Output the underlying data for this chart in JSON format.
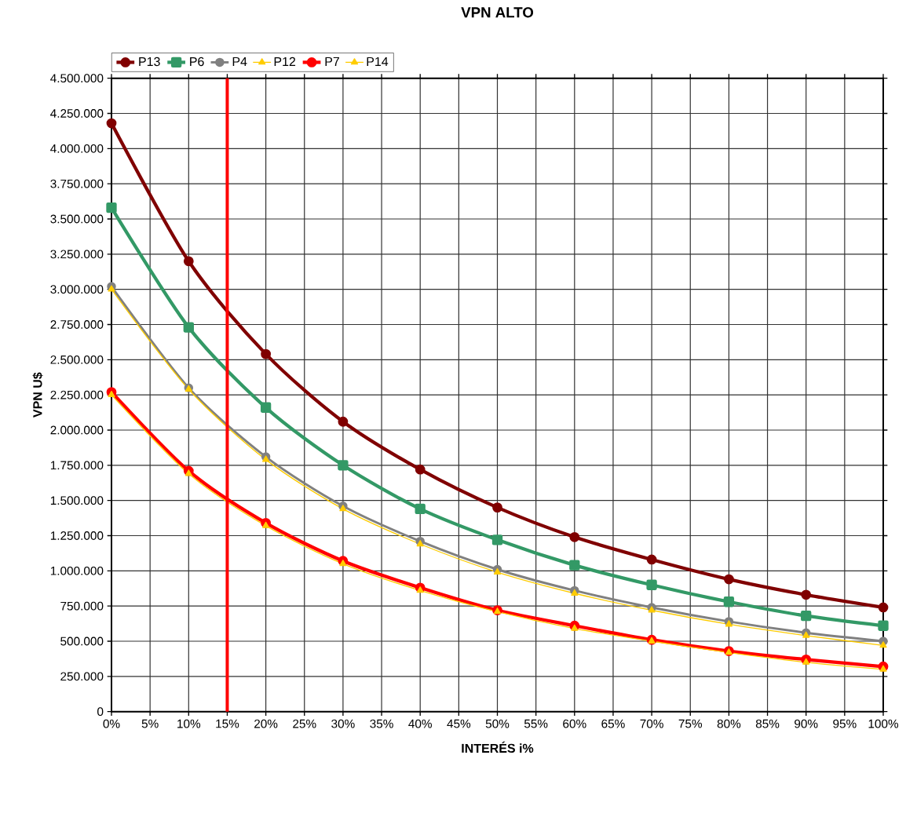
{
  "chart_data": {
    "type": "line",
    "title": "VPN ALTO",
    "xlabel": "INTERÉS i%",
    "ylabel": "VPN U$",
    "x": [
      0,
      10,
      20,
      30,
      40,
      50,
      60,
      70,
      80,
      90,
      100
    ],
    "series": [
      {
        "name": "P13",
        "color": "#800000",
        "marker": "circle",
        "values": [
          4180000,
          3200000,
          2540000,
          2060000,
          1720000,
          1450000,
          1240000,
          1080000,
          940000,
          830000,
          740000
        ]
      },
      {
        "name": "P6",
        "color": "#339966",
        "marker": "square",
        "values": [
          3580000,
          2730000,
          2160000,
          1750000,
          1440000,
          1220000,
          1040000,
          900000,
          780000,
          680000,
          610000
        ]
      },
      {
        "name": "P4",
        "color": "#808080",
        "marker": "circle",
        "values": [
          3020000,
          2300000,
          1810000,
          1460000,
          1210000,
          1010000,
          860000,
          740000,
          640000,
          560000,
          500000
        ]
      },
      {
        "name": "P12",
        "color": "#ffcc00",
        "marker": "triangle",
        "values": [
          3000000,
          2290000,
          1790000,
          1440000,
          1190000,
          990000,
          840000,
          720000,
          620000,
          540000,
          470000
        ]
      },
      {
        "name": "P7",
        "color": "#ff0000",
        "marker": "circle",
        "values": [
          2270000,
          1710000,
          1340000,
          1070000,
          880000,
          720000,
          610000,
          510000,
          430000,
          370000,
          320000
        ]
      },
      {
        "name": "P14",
        "color": "#ffcc00",
        "marker": "triangle",
        "values": [
          2250000,
          1690000,
          1320000,
          1050000,
          860000,
          710000,
          590000,
          500000,
          420000,
          350000,
          300000
        ]
      }
    ],
    "xlim": [
      0,
      100
    ],
    "xticks": [
      {
        "value": 0,
        "label": "0%"
      },
      {
        "value": 5,
        "label": "5%"
      },
      {
        "value": 10,
        "label": "10%"
      },
      {
        "value": 15,
        "label": "15%"
      },
      {
        "value": 20,
        "label": "20%"
      },
      {
        "value": 25,
        "label": "25%"
      },
      {
        "value": 30,
        "label": "30%"
      },
      {
        "value": 35,
        "label": "35%"
      },
      {
        "value": 40,
        "label": "40%"
      },
      {
        "value": 45,
        "label": "45%"
      },
      {
        "value": 50,
        "label": "50%"
      },
      {
        "value": 55,
        "label": "55%"
      },
      {
        "value": 60,
        "label": "60%"
      },
      {
        "value": 65,
        "label": "65%"
      },
      {
        "value": 70,
        "label": "70%"
      },
      {
        "value": 75,
        "label": "75%"
      },
      {
        "value": 80,
        "label": "80%"
      },
      {
        "value": 85,
        "label": "85%"
      },
      {
        "value": 90,
        "label": "90%"
      },
      {
        "value": 95,
        "label": "95%"
      },
      {
        "value": 100,
        "label": "100%"
      }
    ],
    "ylim": [
      0,
      4500000
    ],
    "yticks": [
      0,
      {
        "value": 250000,
        "label": "250.000"
      },
      {
        "value": 500000,
        "label": "500.000"
      },
      {
        "value": 750000,
        "label": "750.000"
      },
      {
        "value": 1000000,
        "label": "1.000.000"
      },
      {
        "value": 1250000,
        "label": "1.250.000"
      },
      {
        "value": 1500000,
        "label": "1.500.000"
      },
      {
        "value": 1750000,
        "label": "1.750.000"
      },
      {
        "value": 2000000,
        "label": "2.000.000"
      },
      {
        "value": 2250000,
        "label": "2.250.000"
      },
      {
        "value": 2500000,
        "label": "2.500.000"
      },
      {
        "value": 2750000,
        "label": "2.750.000"
      },
      {
        "value": 3000000,
        "label": "3.000.000"
      },
      {
        "value": 3250000,
        "label": "3.250.000"
      },
      {
        "value": 3500000,
        "label": "3.500.000"
      },
      {
        "value": 3750000,
        "label": "3.750.000"
      },
      {
        "value": 4000000,
        "label": "4.000.000"
      },
      {
        "value": 4250000,
        "label": "4.250.000"
      },
      {
        "value": 4500000,
        "label": "4.500.000"
      }
    ],
    "ref_lines": [
      {
        "axis": "x",
        "value": 15,
        "color": "#ff0000"
      }
    ],
    "grid": true,
    "legend": "top left"
  }
}
